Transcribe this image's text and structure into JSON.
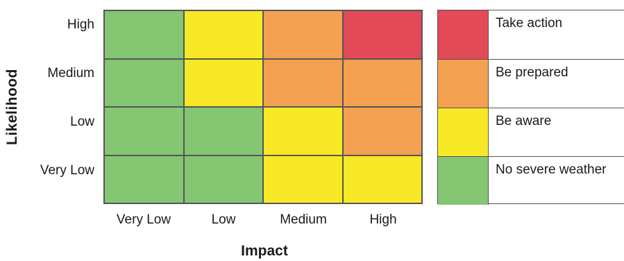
{
  "y_axis": {
    "title": "Likelihood",
    "levels": [
      "High",
      "Medium",
      "Low",
      "Very Low"
    ]
  },
  "x_axis": {
    "title": "Impact",
    "levels": [
      "Very Low",
      "Low",
      "Medium",
      "High"
    ]
  },
  "colors": {
    "green": "#84c672",
    "yellow": "#f7e925",
    "orange": "#f3a150",
    "red": "#e24a58"
  },
  "matrix": [
    [
      "green",
      "yellow",
      "orange",
      "red"
    ],
    [
      "green",
      "yellow",
      "orange",
      "orange"
    ],
    [
      "green",
      "green",
      "yellow",
      "orange"
    ],
    [
      "green",
      "green",
      "yellow",
      "yellow"
    ]
  ],
  "legend": [
    {
      "color": "red",
      "label": "Take action"
    },
    {
      "color": "orange",
      "label": "Be prepared"
    },
    {
      "color": "yellow",
      "label": "Be aware"
    },
    {
      "color": "green",
      "label": "No severe weather"
    }
  ]
}
